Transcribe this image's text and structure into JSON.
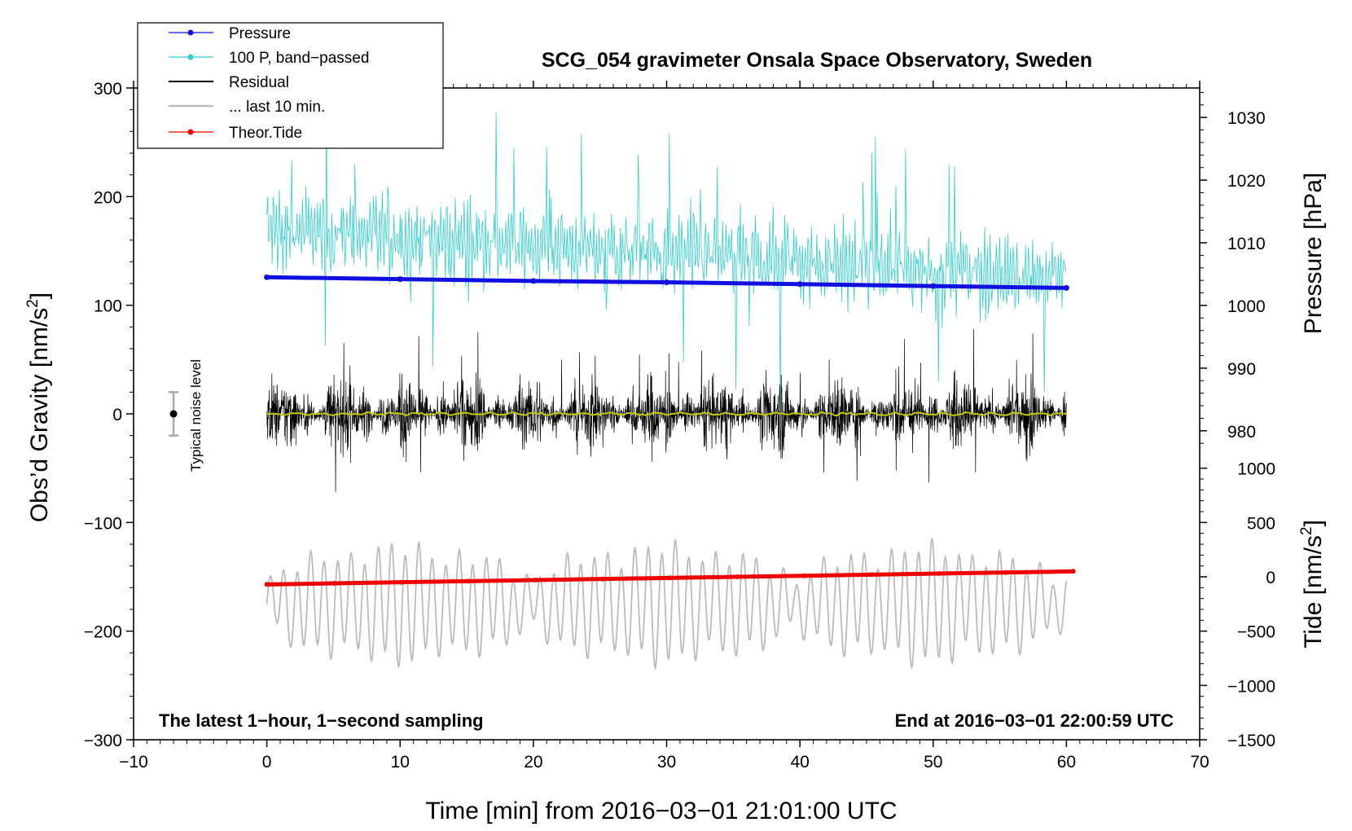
{
  "chart_data": {
    "type": "line",
    "title": "SCG_054 gravimeter Onsala Space Observatory, Sweden",
    "xlabel": "Time [min] from 2016−03−01 21:01:00 UTC",
    "ylabel_left": "Obs’d Gravity [nm/s",
    "ylabel_left_sup": "2",
    "ylabel_left_end": "]",
    "ylabel_right_pressure": "Pressure [hPa]",
    "ylabel_right_tide": "Tide [nm/s",
    "ylabel_right_tide_sup": "2",
    "ylabel_right_tide_end": "]",
    "xlim": [
      -10,
      70
    ],
    "ylim_left": [
      -300,
      300
    ],
    "x_ticks": [
      {
        "value": -10,
        "label": "−10"
      },
      {
        "value": 0,
        "label": "0"
      },
      {
        "value": 10,
        "label": "10"
      },
      {
        "value": 20,
        "label": "20"
      },
      {
        "value": 30,
        "label": "30"
      },
      {
        "value": 40,
        "label": "40"
      },
      {
        "value": 50,
        "label": "50"
      },
      {
        "value": 60,
        "label": "60"
      },
      {
        "value": 70,
        "label": "70"
      }
    ],
    "y_ticks_left": [
      {
        "value": 300,
        "label": "300"
      },
      {
        "value": 200,
        "label": "200"
      },
      {
        "value": 100,
        "label": "100"
      },
      {
        "value": 0,
        "label": "0"
      },
      {
        "value": -100,
        "label": "−100"
      },
      {
        "value": -200,
        "label": "−200"
      },
      {
        "value": -300,
        "label": "−300"
      }
    ],
    "pressure_axis": {
      "ref": {
        "gravity": 300,
        "hpa": 1034.7,
        "gravity2": 0,
        "hpa2": 982.7
      },
      "ticks": [
        {
          "value": 1030,
          "label": "1030"
        },
        {
          "value": 1020,
          "label": "1020"
        },
        {
          "value": 1010,
          "label": "1010"
        },
        {
          "value": 1000,
          "label": "1000"
        },
        {
          "value": 990,
          "label": "990"
        },
        {
          "value": 980,
          "label": "980"
        }
      ]
    },
    "tide_axis": {
      "ref": {
        "gravity": -300,
        "tide": -1500
      },
      "per_gravity": 10,
      "ticks": [
        {
          "value": 1000,
          "label": "1000"
        },
        {
          "value": 500,
          "label": "500"
        },
        {
          "value": 0,
          "label": "0"
        },
        {
          "value": -500,
          "label": "−500"
        },
        {
          "value": -1000,
          "label": "−1000"
        },
        {
          "value": -1500,
          "label": "−1500"
        }
      ]
    },
    "series": [
      {
        "name": "Pressure",
        "color": "#1010e0",
        "axis": "pressure",
        "x": [
          0,
          10,
          20,
          30,
          40,
          50,
          60
        ],
        "y": [
          1004.5,
          1004.2,
          1003.9,
          1003.7,
          1003.4,
          1003.1,
          1002.8
        ]
      },
      {
        "name": "100 P, band−passed",
        "color": "#33cccc",
        "axis": "gravity",
        "baseline": 170,
        "trend_end": 125,
        "amplitude": 35,
        "x_range": [
          0,
          60
        ]
      },
      {
        "name": "Residual",
        "color": "#000000",
        "axis": "gravity",
        "baseline": 0,
        "amplitude": 30,
        "x_range": [
          0,
          60
        ]
      },
      {
        "name": "... last 10 min.",
        "color": "#bbbbbb",
        "axis": "gravity",
        "baseline": -175,
        "amplitude": 40,
        "x_range": [
          0,
          60
        ]
      },
      {
        "name": "Theor.Tide",
        "color": "#ee0000",
        "axis": "tide",
        "x": [
          0,
          60.5
        ],
        "y": [
          -70,
          50
        ]
      },
      {
        "name": "Mean residual",
        "color": "#c8c800",
        "axis": "gravity",
        "baseline": 0,
        "x_range": [
          0,
          60
        ]
      }
    ],
    "noise_bar": {
      "x": -7,
      "y": 0,
      "error": 20,
      "label": "Typical noise level"
    },
    "annotations": {
      "left": "The latest 1−hour, 1−second sampling",
      "right": "End at 2016−03−01 22:00:59 UTC"
    }
  },
  "legend": {
    "items": [
      {
        "label": "Pressure",
        "color": "#1010e0",
        "marker": true
      },
      {
        "label": "100 P, band−passed",
        "color": "#33cccc",
        "marker": true
      },
      {
        "label": "Residual",
        "color": "#000000",
        "marker": false
      },
      {
        "label": "... last 10 min.",
        "color": "#bbbbbb",
        "marker": false
      },
      {
        "label": "Theor.Tide",
        "color": "#ee0000",
        "marker": true
      }
    ]
  }
}
